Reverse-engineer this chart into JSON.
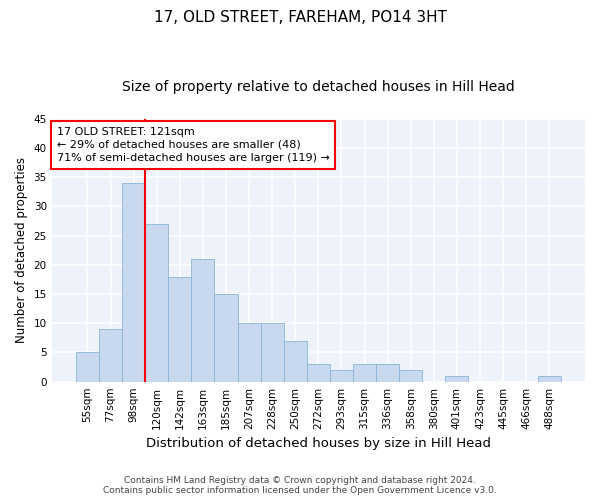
{
  "title": "17, OLD STREET, FAREHAM, PO14 3HT",
  "subtitle": "Size of property relative to detached houses in Hill Head",
  "xlabel": "Distribution of detached houses by size in Hill Head",
  "ylabel": "Number of detached properties",
  "categories": [
    "55sqm",
    "77sqm",
    "98sqm",
    "120sqm",
    "142sqm",
    "163sqm",
    "185sqm",
    "207sqm",
    "228sqm",
    "250sqm",
    "272sqm",
    "293sqm",
    "315sqm",
    "336sqm",
    "358sqm",
    "380sqm",
    "401sqm",
    "423sqm",
    "445sqm",
    "466sqm",
    "488sqm"
  ],
  "values": [
    5,
    9,
    34,
    27,
    18,
    21,
    15,
    10,
    10,
    7,
    3,
    2,
    3,
    3,
    2,
    0,
    1,
    0,
    0,
    0,
    1
  ],
  "bar_color": "#c8d9ef",
  "bar_edge_color": "#8ab4d8",
  "background_color": "#eef2fb",
  "grid_color": "#ffffff",
  "ylim": [
    0,
    45
  ],
  "yticks": [
    0,
    5,
    10,
    15,
    20,
    25,
    30,
    35,
    40,
    45
  ],
  "property_label": "17 OLD STREET: 121sqm",
  "annotation_line1": "← 29% of detached houses are smaller (48)",
  "annotation_line2": "71% of semi-detached houses are larger (119) →",
  "vline_bin_index": 3,
  "footer_line1": "Contains HM Land Registry data © Crown copyright and database right 2024.",
  "footer_line2": "Contains public sector information licensed under the Open Government Licence v3.0.",
  "title_fontsize": 11,
  "subtitle_fontsize": 10,
  "tick_fontsize": 7.5,
  "ylabel_fontsize": 8.5,
  "xlabel_fontsize": 9.5,
  "annotation_fontsize": 8,
  "footer_fontsize": 6.5
}
